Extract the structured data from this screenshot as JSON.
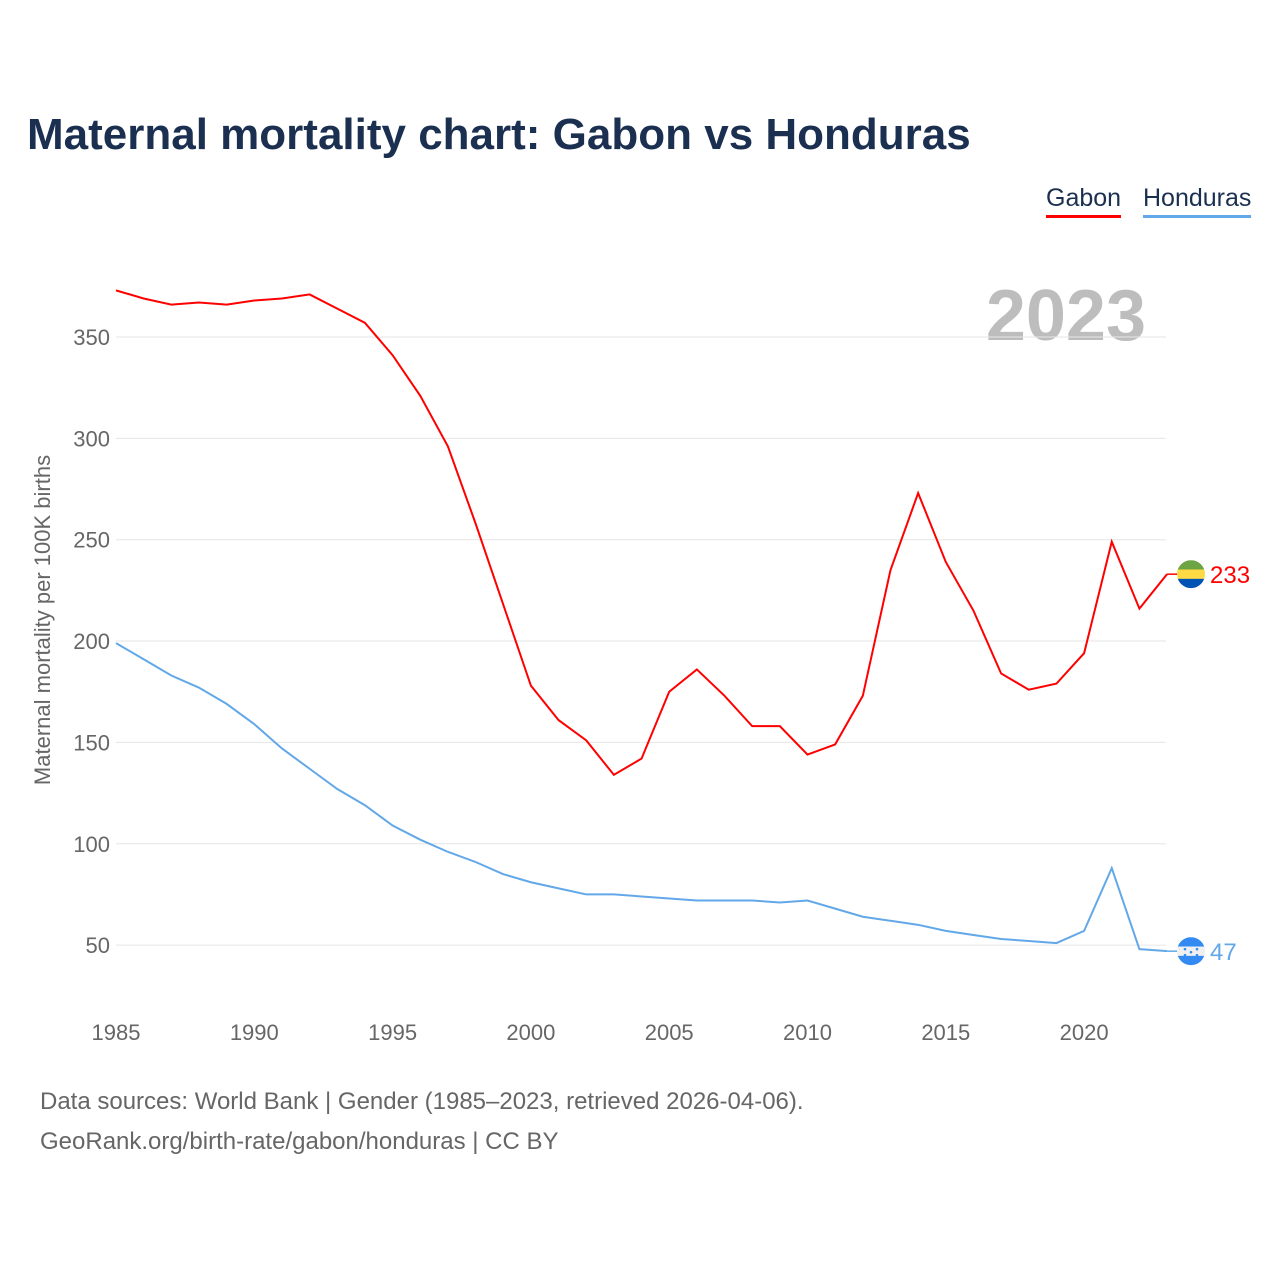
{
  "chart_data": {
    "type": "line",
    "title": "Maternal mortality chart: Gabon vs Honduras",
    "ylabel": "Maternal mortality per 100K births",
    "xlabel": "",
    "year_label": "2023",
    "ylim": [
      25,
      375
    ],
    "xlim": [
      1985,
      2023
    ],
    "yticks": [
      50,
      100,
      150,
      200,
      250,
      300,
      350
    ],
    "xticks": [
      1985,
      1990,
      1995,
      2000,
      2005,
      2010,
      2015,
      2020
    ],
    "grid": true,
    "legend_position": "top-right",
    "x": [
      1985,
      1986,
      1987,
      1988,
      1989,
      1990,
      1991,
      1992,
      1993,
      1994,
      1995,
      1996,
      1997,
      1998,
      1999,
      2000,
      2001,
      2002,
      2003,
      2004,
      2005,
      2006,
      2007,
      2008,
      2009,
      2010,
      2011,
      2012,
      2013,
      2014,
      2015,
      2016,
      2017,
      2018,
      2019,
      2020,
      2021,
      2022,
      2023
    ],
    "series": [
      {
        "name": "Gabon",
        "color": "#ff0000",
        "end_label": "233",
        "values": [
          373,
          369,
          366,
          367,
          366,
          368,
          369,
          371,
          364,
          357,
          341,
          321,
          296,
          258,
          218,
          178,
          161,
          151,
          134,
          142,
          175,
          186,
          173,
          158,
          158,
          144,
          149,
          173,
          235,
          273,
          239,
          215,
          184,
          176,
          179,
          194,
          249,
          216,
          233
        ]
      },
      {
        "name": "Honduras",
        "color": "#62a8e8",
        "end_label": "47",
        "values": [
          199,
          191,
          183,
          177,
          169,
          159,
          147,
          137,
          127,
          119,
          109,
          102,
          96,
          91,
          85,
          81,
          78,
          75,
          75,
          74,
          73,
          72,
          72,
          72,
          71,
          72,
          68,
          64,
          62,
          60,
          57,
          55,
          53,
          52,
          51,
          57,
          88,
          48,
          47
        ]
      }
    ]
  },
  "footer": {
    "line1": "Data sources: World Bank | Gender (1985–2023, retrieved 2026-04-06).",
    "line2": "GeoRank.org/birth-rate/gabon/honduras | CC BY"
  }
}
